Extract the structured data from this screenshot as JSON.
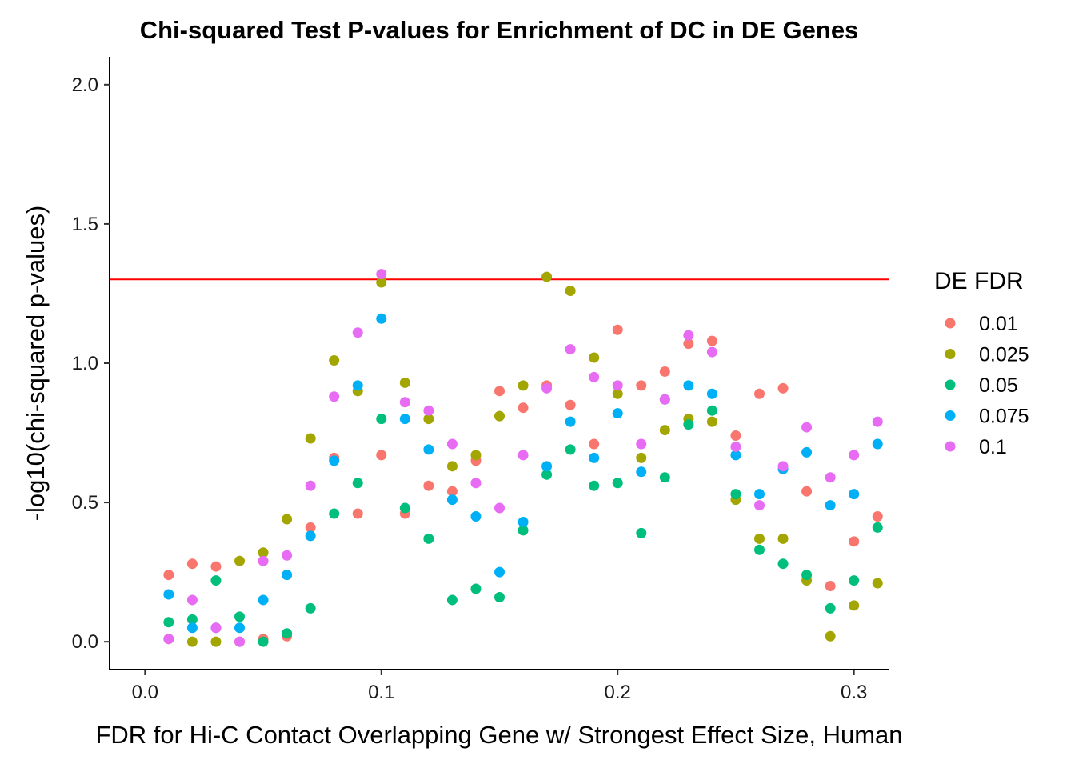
{
  "chart_data": {
    "type": "scatter",
    "title": "Chi-squared Test P-values for Enrichment of DC in DE Genes",
    "xlabel": "FDR for Hi-C Contact Overlapping Gene w/ Strongest Effect Size, Human",
    "ylabel": "-log10(chi-squared p-values)",
    "xlim": [
      -0.015,
      0.315
    ],
    "ylim": [
      -0.1,
      2.1
    ],
    "x_ticks": [
      0.0,
      0.1,
      0.2,
      0.3
    ],
    "x_tick_labels": [
      "0.0",
      "0.1",
      "0.2",
      "0.3"
    ],
    "y_ticks": [
      0.0,
      0.5,
      1.0,
      1.5,
      2.0
    ],
    "y_tick_labels": [
      "0.0",
      "0.5",
      "1.0",
      "1.5",
      "2.0"
    ],
    "hline": {
      "y": 1.301,
      "color": "#ff0000"
    },
    "grid": false,
    "legend": {
      "title": "DE FDR",
      "position": "right"
    },
    "x": [
      0.01,
      0.02,
      0.03,
      0.04,
      0.05,
      0.06,
      0.07,
      0.08,
      0.09,
      0.1,
      0.11,
      0.12,
      0.13,
      0.14,
      0.15,
      0.16,
      0.17,
      0.18,
      0.19,
      0.2,
      0.21,
      0.22,
      0.23,
      0.24,
      0.25,
      0.26,
      0.27,
      0.28,
      0.29,
      0.3,
      0.31
    ],
    "series": [
      {
        "name": "0.01",
        "color": "#F8766D",
        "values": [
          0.24,
          0.28,
          0.27,
          0.0,
          0.01,
          0.02,
          0.41,
          0.66,
          0.46,
          0.67,
          0.46,
          0.56,
          0.54,
          0.65,
          0.9,
          0.84,
          0.92,
          0.85,
          0.71,
          1.12,
          0.92,
          0.97,
          1.07,
          1.08,
          0.74,
          0.89,
          0.91,
          0.54,
          0.2,
          0.36,
          0.45
        ]
      },
      {
        "name": "0.025",
        "color": "#A3A500",
        "values": [
          0.01,
          0.0,
          0.0,
          0.29,
          0.32,
          0.44,
          0.73,
          1.01,
          0.9,
          1.29,
          0.93,
          0.8,
          0.63,
          0.67,
          0.81,
          0.92,
          1.31,
          1.26,
          1.02,
          0.89,
          0.66,
          0.76,
          0.8,
          0.79,
          0.51,
          0.37,
          0.37,
          0.22,
          0.02,
          0.13,
          0.21
        ]
      },
      {
        "name": "0.05",
        "color": "#00BF7D",
        "values": [
          0.07,
          0.08,
          0.22,
          0.09,
          0.0,
          0.03,
          0.12,
          0.46,
          0.57,
          0.8,
          0.48,
          0.37,
          0.15,
          0.19,
          0.16,
          0.4,
          0.6,
          0.69,
          0.56,
          0.57,
          0.39,
          0.59,
          0.78,
          0.83,
          0.53,
          0.33,
          0.28,
          0.24,
          0.12,
          0.22,
          0.41
        ]
      },
      {
        "name": "0.075",
        "color": "#00B0F6",
        "values": [
          0.17,
          0.05,
          0.05,
          0.05,
          0.15,
          0.24,
          0.38,
          0.65,
          0.92,
          1.16,
          0.8,
          0.69,
          0.51,
          0.45,
          0.25,
          0.43,
          0.63,
          0.79,
          0.66,
          0.82,
          0.61,
          0.87,
          0.92,
          0.89,
          0.67,
          0.53,
          0.62,
          0.68,
          0.49,
          0.53,
          0.71
        ]
      },
      {
        "name": "0.1",
        "color": "#E76BF3",
        "values": [
          0.01,
          0.15,
          0.05,
          0.0,
          0.29,
          0.31,
          0.56,
          0.88,
          1.11,
          1.32,
          0.86,
          0.83,
          0.71,
          0.57,
          0.48,
          0.67,
          0.91,
          1.05,
          0.95,
          0.92,
          0.71,
          0.87,
          1.1,
          1.04,
          0.7,
          0.49,
          0.63,
          0.77,
          0.59,
          0.67,
          0.79
        ]
      }
    ]
  }
}
